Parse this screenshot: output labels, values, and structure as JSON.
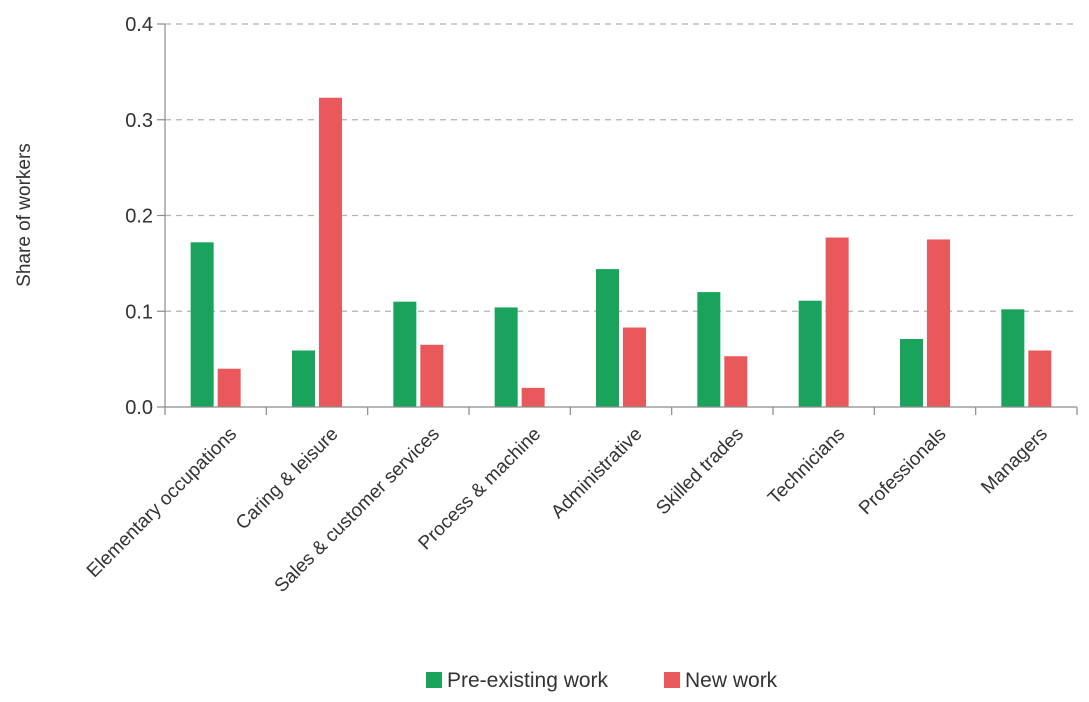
{
  "chart_data": {
    "type": "bar",
    "title": "",
    "xlabel": "",
    "ylabel": "Share of workers",
    "ylim": [
      0,
      0.4
    ],
    "yticks": [
      "0.0",
      "0.1",
      "0.2",
      "0.3",
      "0.4"
    ],
    "grid": "horizontal dashed",
    "legend_position": "bottom",
    "categories": [
      "Elementary occupations",
      "Caring & leisure",
      "Sales & customer services",
      "Process & machine",
      "Administrative",
      "Skilled trades",
      "Technicians",
      "Professionals",
      "Managers"
    ],
    "series": [
      {
        "name": "Pre-existing work",
        "color": "#1aa35a",
        "values": [
          0.172,
          0.059,
          0.11,
          0.104,
          0.144,
          0.12,
          0.111,
          0.071,
          0.102
        ]
      },
      {
        "name": "New work",
        "color": "#e9585a",
        "values": [
          0.04,
          0.323,
          0.065,
          0.02,
          0.083,
          0.053,
          0.177,
          0.175,
          0.059
        ]
      }
    ]
  }
}
